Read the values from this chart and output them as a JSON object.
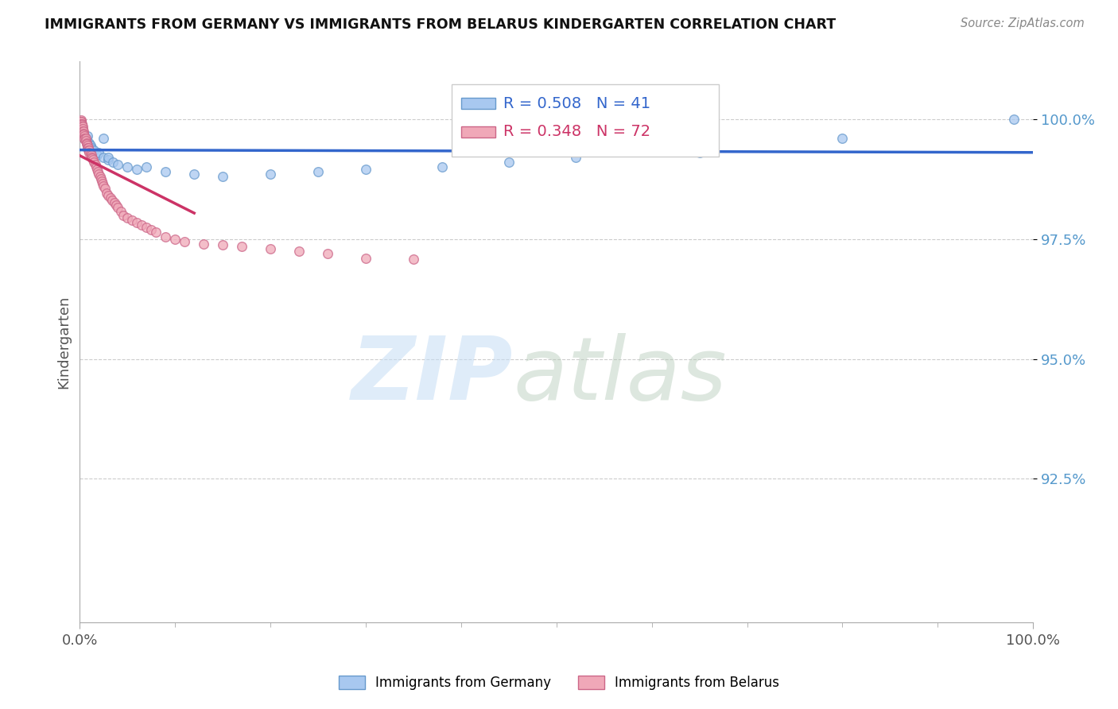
{
  "title": "IMMIGRANTS FROM GERMANY VS IMMIGRANTS FROM BELARUS KINDERGARTEN CORRELATION CHART",
  "source_text": "Source: ZipAtlas.com",
  "ylabel": "Kindergarten",
  "xlim": [
    0.0,
    1.0
  ],
  "ylim": [
    0.895,
    1.012
  ],
  "yticks": [
    0.925,
    0.95,
    0.975,
    1.0
  ],
  "ytick_labels": [
    "92.5%",
    "95.0%",
    "97.5%",
    "100.0%"
  ],
  "xtick_labels": [
    "0.0%",
    "100.0%"
  ],
  "germany_color": "#a8c8f0",
  "belarus_color": "#f0a8b8",
  "germany_edge": "#6699cc",
  "belarus_edge": "#cc6688",
  "trend_germany_color": "#3366cc",
  "trend_belarus_color": "#cc3366",
  "R_germany": 0.508,
  "N_germany": 41,
  "R_belarus": 0.348,
  "N_belarus": 72,
  "germany_x": [
    0.001,
    0.001,
    0.002,
    0.002,
    0.003,
    0.003,
    0.004,
    0.004,
    0.005,
    0.006,
    0.007,
    0.008,
    0.009,
    0.01,
    0.011,
    0.012,
    0.013,
    0.015,
    0.018,
    0.02,
    0.025,
    0.025,
    0.03,
    0.03,
    0.035,
    0.04,
    0.05,
    0.06,
    0.07,
    0.09,
    0.12,
    0.15,
    0.2,
    0.25,
    0.3,
    0.38,
    0.45,
    0.52,
    0.65,
    0.8,
    0.98
  ],
  "germany_y": [
    0.9985,
    0.999,
    0.9975,
    0.998,
    0.9975,
    0.997,
    0.9965,
    0.997,
    0.996,
    0.996,
    0.996,
    0.9965,
    0.995,
    0.995,
    0.9945,
    0.994,
    0.9935,
    0.9935,
    0.9925,
    0.993,
    0.992,
    0.996,
    0.9915,
    0.992,
    0.991,
    0.9905,
    0.99,
    0.9895,
    0.99,
    0.989,
    0.9885,
    0.988,
    0.9885,
    0.989,
    0.9895,
    0.99,
    0.991,
    0.992,
    0.993,
    0.996,
    1.0
  ],
  "belarus_x": [
    0.001,
    0.001,
    0.001,
    0.001,
    0.001,
    0.002,
    0.002,
    0.002,
    0.002,
    0.003,
    0.003,
    0.003,
    0.004,
    0.004,
    0.004,
    0.005,
    0.005,
    0.005,
    0.006,
    0.006,
    0.007,
    0.007,
    0.008,
    0.008,
    0.009,
    0.009,
    0.01,
    0.01,
    0.011,
    0.012,
    0.012,
    0.013,
    0.014,
    0.015,
    0.016,
    0.017,
    0.018,
    0.019,
    0.02,
    0.021,
    0.022,
    0.023,
    0.024,
    0.025,
    0.026,
    0.028,
    0.03,
    0.032,
    0.034,
    0.036,
    0.038,
    0.04,
    0.043,
    0.046,
    0.05,
    0.055,
    0.06,
    0.065,
    0.07,
    0.075,
    0.08,
    0.09,
    0.1,
    0.11,
    0.13,
    0.15,
    0.17,
    0.2,
    0.23,
    0.26,
    0.3,
    0.35
  ],
  "belarus_y": [
    0.9998,
    0.9995,
    0.9995,
    0.999,
    0.999,
    0.999,
    0.9988,
    0.9985,
    0.998,
    0.9985,
    0.998,
    0.9975,
    0.9975,
    0.997,
    0.9968,
    0.9965,
    0.996,
    0.9958,
    0.996,
    0.9955,
    0.995,
    0.9948,
    0.9945,
    0.994,
    0.994,
    0.9935,
    0.9935,
    0.993,
    0.9928,
    0.9925,
    0.992,
    0.9918,
    0.9915,
    0.991,
    0.9905,
    0.99,
    0.9895,
    0.989,
    0.9885,
    0.988,
    0.9875,
    0.987,
    0.9865,
    0.986,
    0.9855,
    0.9845,
    0.984,
    0.9835,
    0.983,
    0.9825,
    0.982,
    0.9815,
    0.9808,
    0.98,
    0.9795,
    0.979,
    0.9785,
    0.978,
    0.9775,
    0.977,
    0.9765,
    0.9755,
    0.975,
    0.9745,
    0.974,
    0.9738,
    0.9735,
    0.973,
    0.9725,
    0.972,
    0.971,
    0.9708
  ],
  "marker_size": 10,
  "background_color": "#ffffff",
  "grid_color": "#cccccc",
  "watermark_zip_color": "#c5ddf5",
  "watermark_atlas_color": "#b5cab8"
}
